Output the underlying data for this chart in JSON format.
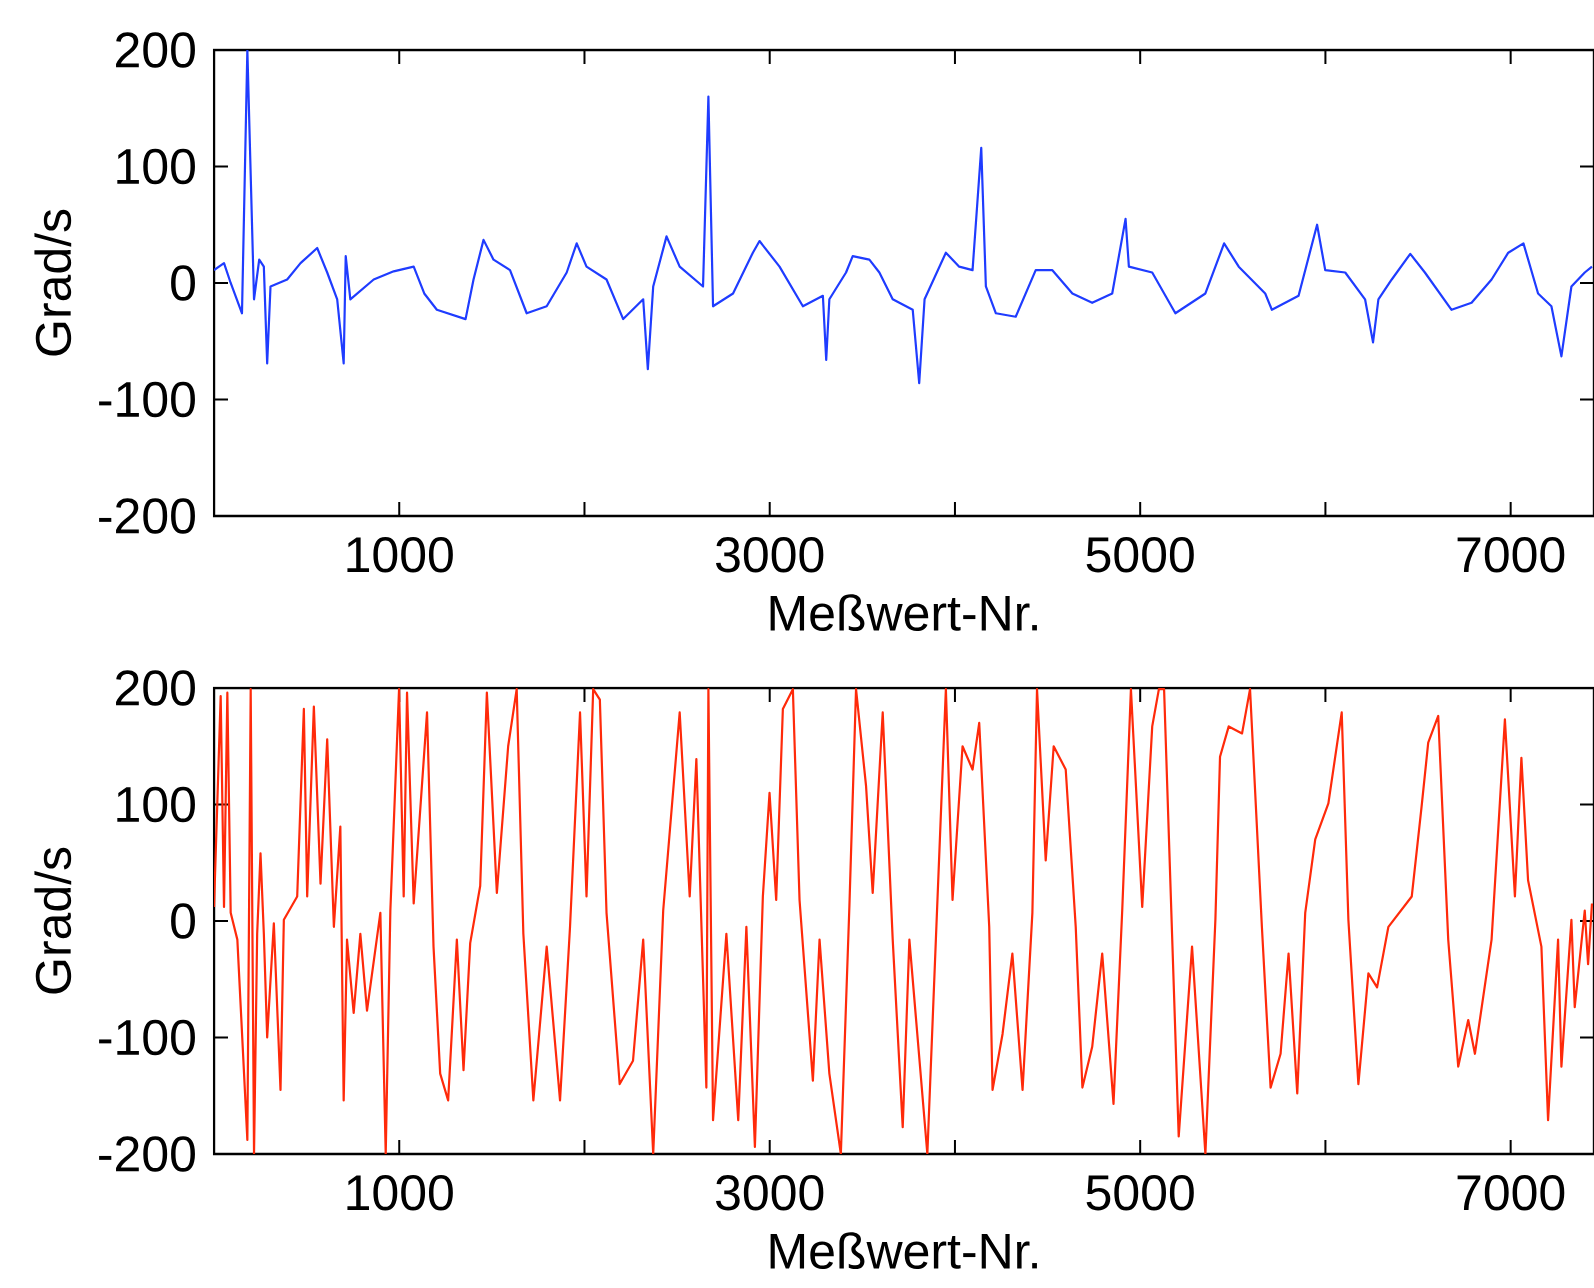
{
  "chart_data": [
    {
      "type": "line",
      "xlabel": "Meßwert-Nr.",
      "ylabel": "Grad/s",
      "xlim": [
        0,
        7450
      ],
      "ylim": [
        -200,
        200
      ],
      "xticks": [
        {
          "value": 1000,
          "label": "1000"
        },
        {
          "value": 2000,
          "label": null
        },
        {
          "value": 3000,
          "label": "3000"
        },
        {
          "value": 4000,
          "label": null
        },
        {
          "value": 5000,
          "label": "5000"
        },
        {
          "value": 6000,
          "label": null
        },
        {
          "value": 7000,
          "label": "7000"
        }
      ],
      "yticks": [
        -200,
        -100,
        0,
        100,
        200
      ],
      "marker": "none",
      "series": [
        {
          "color": "#1f3cff",
          "x": [
            0,
            54,
            90,
            151,
            180,
            216,
            244,
            269,
            287,
            305,
            395,
            467,
            557,
            611,
            665,
            700,
            711,
            736,
            862,
            970,
            1078,
            1135,
            1203,
            1358,
            1401,
            1455,
            1509,
            1598,
            1688,
            1796,
            1904,
            1958,
            2011,
            2119,
            2209,
            2317,
            2342,
            2371,
            2443,
            2514,
            2640,
            2669,
            2694,
            2802,
            2909,
            2945,
            3053,
            3179,
            3287,
            3305,
            3322,
            3412,
            3448,
            3538,
            3592,
            3664,
            3772,
            3807,
            3836,
            3951,
            4023,
            4095,
            4142,
            4167,
            4221,
            4328,
            4436,
            4526,
            4634,
            4741,
            4849,
            4921,
            4939,
            5065,
            5190,
            5352,
            5453,
            5532,
            5675,
            5711,
            5855,
            5955,
            5999,
            6107,
            6214,
            6257,
            6286,
            6358,
            6458,
            6537,
            6681,
            6789,
            6897,
            6987,
            7069,
            7148,
            7220,
            7274,
            7328,
            7400,
            7439
          ],
          "values": [
            11,
            17,
            0,
            -26,
            200,
            -14,
            20,
            14,
            -69,
            -3,
            3,
            17,
            30,
            9,
            -14,
            -69,
            23,
            -14,
            3,
            10,
            14,
            -9,
            -23,
            -31,
            3,
            37,
            20,
            11,
            -26,
            -20,
            9,
            34,
            14,
            3,
            -31,
            -14,
            -74,
            -3,
            40,
            14,
            -3,
            160,
            -20,
            -9,
            26,
            36,
            14,
            -20,
            -11,
            -66,
            -14,
            9,
            23,
            20,
            9,
            -14,
            -23,
            -86,
            -14,
            26,
            14,
            11,
            116,
            -3,
            -26,
            -29,
            11,
            11,
            -9,
            -17,
            -9,
            55,
            14,
            9,
            -26,
            -9,
            34,
            14,
            -9,
            -23,
            -11,
            50,
            11,
            9,
            -14,
            -51,
            -14,
            3,
            25,
            9,
            -23,
            -17,
            3,
            26,
            34,
            -9,
            -20,
            -63,
            -3,
            9,
            14
          ]
        }
      ]
    },
    {
      "type": "line",
      "xlabel": "Meßwert-Nr.",
      "ylabel": "Grad/s",
      "xlim": [
        0,
        7450
      ],
      "ylim": [
        -200,
        200
      ],
      "xticks": [
        {
          "value": 1000,
          "label": "1000"
        },
        {
          "value": 2000,
          "label": null
        },
        {
          "value": 3000,
          "label": "3000"
        },
        {
          "value": 4000,
          "label": null
        },
        {
          "value": 5000,
          "label": "5000"
        },
        {
          "value": 6000,
          "label": null
        },
        {
          "value": 7000,
          "label": "7000"
        }
      ],
      "yticks": [
        -200,
        -100,
        0,
        100,
        200
      ],
      "marker": "none",
      "series": [
        {
          "color": "#ff2a0a",
          "x": [
            0,
            36,
            54,
            72,
            90,
            126,
            180,
            198,
            216,
            233,
            251,
            269,
            287,
            323,
            359,
            377,
            449,
            485,
            503,
            539,
            575,
            611,
            647,
            682,
            700,
            718,
            754,
            790,
            826,
            898,
            927,
            952,
            999,
            1024,
            1042,
            1078,
            1150,
            1185,
            1221,
            1264,
            1311,
            1347,
            1383,
            1437,
            1473,
            1527,
            1588,
            1634,
            1670,
            1724,
            1796,
            1868,
            1922,
            1976,
            2011,
            2047,
            2083,
            2119,
            2190,
            2262,
            2317,
            2371,
            2425,
            2514,
            2568,
            2604,
            2658,
            2669,
            2694,
            2766,
            2830,
            2874,
            2920,
            2963,
            2999,
            3035,
            3071,
            3125,
            3161,
            3233,
            3269,
            3322,
            3384,
            3430,
            3466,
            3520,
            3556,
            3610,
            3664,
            3718,
            3754,
            3851,
            3897,
            3951,
            3987,
            4041,
            4095,
            4131,
            4185,
            4203,
            4257,
            4310,
            4365,
            4418,
            4443,
            4490,
            4533,
            4598,
            4652,
            4688,
            4741,
            4795,
            4856,
            4903,
            4950,
            5011,
            5065,
            5101,
            5129,
            5172,
            5208,
            5280,
            5352,
            5406,
            5431,
            5478,
            5550,
            5593,
            5657,
            5704,
            5758,
            5801,
            5848,
            5891,
            5945,
            6016,
            6088,
            6124,
            6178,
            6232,
            6279,
            6340,
            6466,
            6519,
            6555,
            6609,
            6663,
            6717,
            6771,
            6807,
            6897,
            6969,
            7023,
            7058,
            7094,
            7166,
            7202,
            7256,
            7274,
            7328,
            7346,
            7400,
            7418,
            7439
          ],
          "values": [
            12,
            193,
            12,
            196,
            7,
            -16,
            -188,
            199,
            -200,
            -11,
            58,
            -11,
            -100,
            -2,
            -145,
            1,
            21,
            182,
            21,
            184,
            32,
            156,
            -5,
            81,
            -154,
            -16,
            -79,
            -11,
            -77,
            7,
            -200,
            9,
            199,
            21,
            196,
            15,
            179,
            -22,
            -131,
            -154,
            -16,
            -128,
            -19,
            30,
            196,
            24,
            150,
            199,
            -11,
            -154,
            -22,
            -154,
            -5,
            179,
            21,
            199,
            190,
            7,
            -140,
            -120,
            -16,
            -200,
            9,
            179,
            21,
            139,
            -143,
            199,
            -171,
            -11,
            -171,
            -5,
            -194,
            21,
            110,
            18,
            182,
            199,
            18,
            -137,
            -16,
            -131,
            -200,
            12,
            199,
            116,
            24,
            179,
            -16,
            -177,
            -16,
            -200,
            -16,
            199,
            18,
            150,
            130,
            170,
            -5,
            -145,
            -97,
            -28,
            -145,
            7,
            199,
            52,
            150,
            130,
            -5,
            -143,
            -108,
            -28,
            -157,
            9,
            199,
            12,
            167,
            199,
            199,
            -11,
            -185,
            -22,
            -200,
            1,
            141,
            167,
            161,
            199,
            -5,
            -143,
            -114,
            -28,
            -148,
            7,
            70,
            101,
            179,
            1,
            -140,
            -45,
            -57,
            -5,
            21,
            98,
            153,
            176,
            -16,
            -125,
            -85,
            -114,
            -16,
            173,
            21,
            140,
            35,
            -22,
            -171,
            -16,
            -125,
            1,
            -74,
            9,
            -37,
            15
          ]
        }
      ]
    }
  ]
}
